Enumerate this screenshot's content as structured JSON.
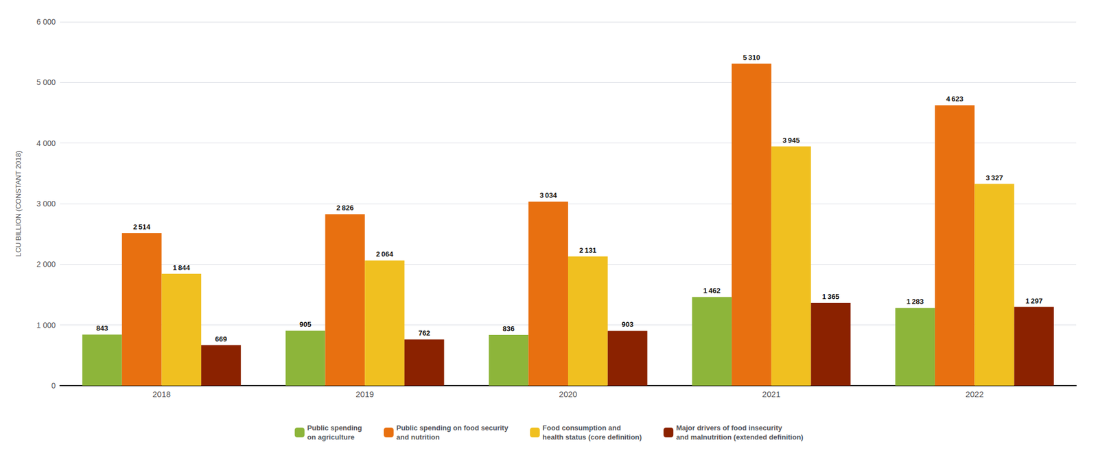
{
  "chart_data": {
    "type": "bar",
    "ylabel": "LCU BILLION (CONSTANT 2018)",
    "categories": [
      "2018",
      "2019",
      "2020",
      "2021",
      "2022"
    ],
    "series": [
      {
        "name": "Public spending\non agriculture",
        "color": "#8db53a",
        "values": [
          843,
          905,
          836,
          1462,
          1283
        ],
        "value_labels": [
          "843",
          "905",
          "836",
          "1 462",
          "1 283"
        ]
      },
      {
        "name": "Public spending on food security\nand nutrition",
        "color": "#e87010",
        "values": [
          2514,
          2826,
          3034,
          5310,
          4623
        ],
        "value_labels": [
          "2 514",
          "2 826",
          "3 034",
          "5 310",
          "4 623"
        ]
      },
      {
        "name": "Food consumption and\nhealth status (core definition)",
        "color": "#f0c020",
        "values": [
          1844,
          2064,
          2131,
          3945,
          3327
        ],
        "value_labels": [
          "1 844",
          "2 064",
          "2 131",
          "3 945",
          "3 327"
        ]
      },
      {
        "name": "Major drivers of food insecurity\nand malnutrition (extended definition)",
        "color": "#8b2200",
        "values": [
          669,
          762,
          903,
          1365,
          1297
        ],
        "value_labels": [
          "669",
          "762",
          "903",
          "1 365",
          "1 297"
        ]
      }
    ],
    "ylim": [
      0,
      6000
    ],
    "yticks": [
      0,
      {
        "value": 1000,
        "label": "1 000"
      },
      {
        "value": 2000,
        "label": "2 000"
      },
      {
        "value": 3000,
        "label": "3 000"
      },
      {
        "value": 4000,
        "label": "4 000"
      },
      {
        "value": 5000,
        "label": "5 000"
      },
      {
        "value": 6000,
        "label": "6 000"
      }
    ],
    "grid": true,
    "legend": "bottom",
    "data_labels": true
  }
}
